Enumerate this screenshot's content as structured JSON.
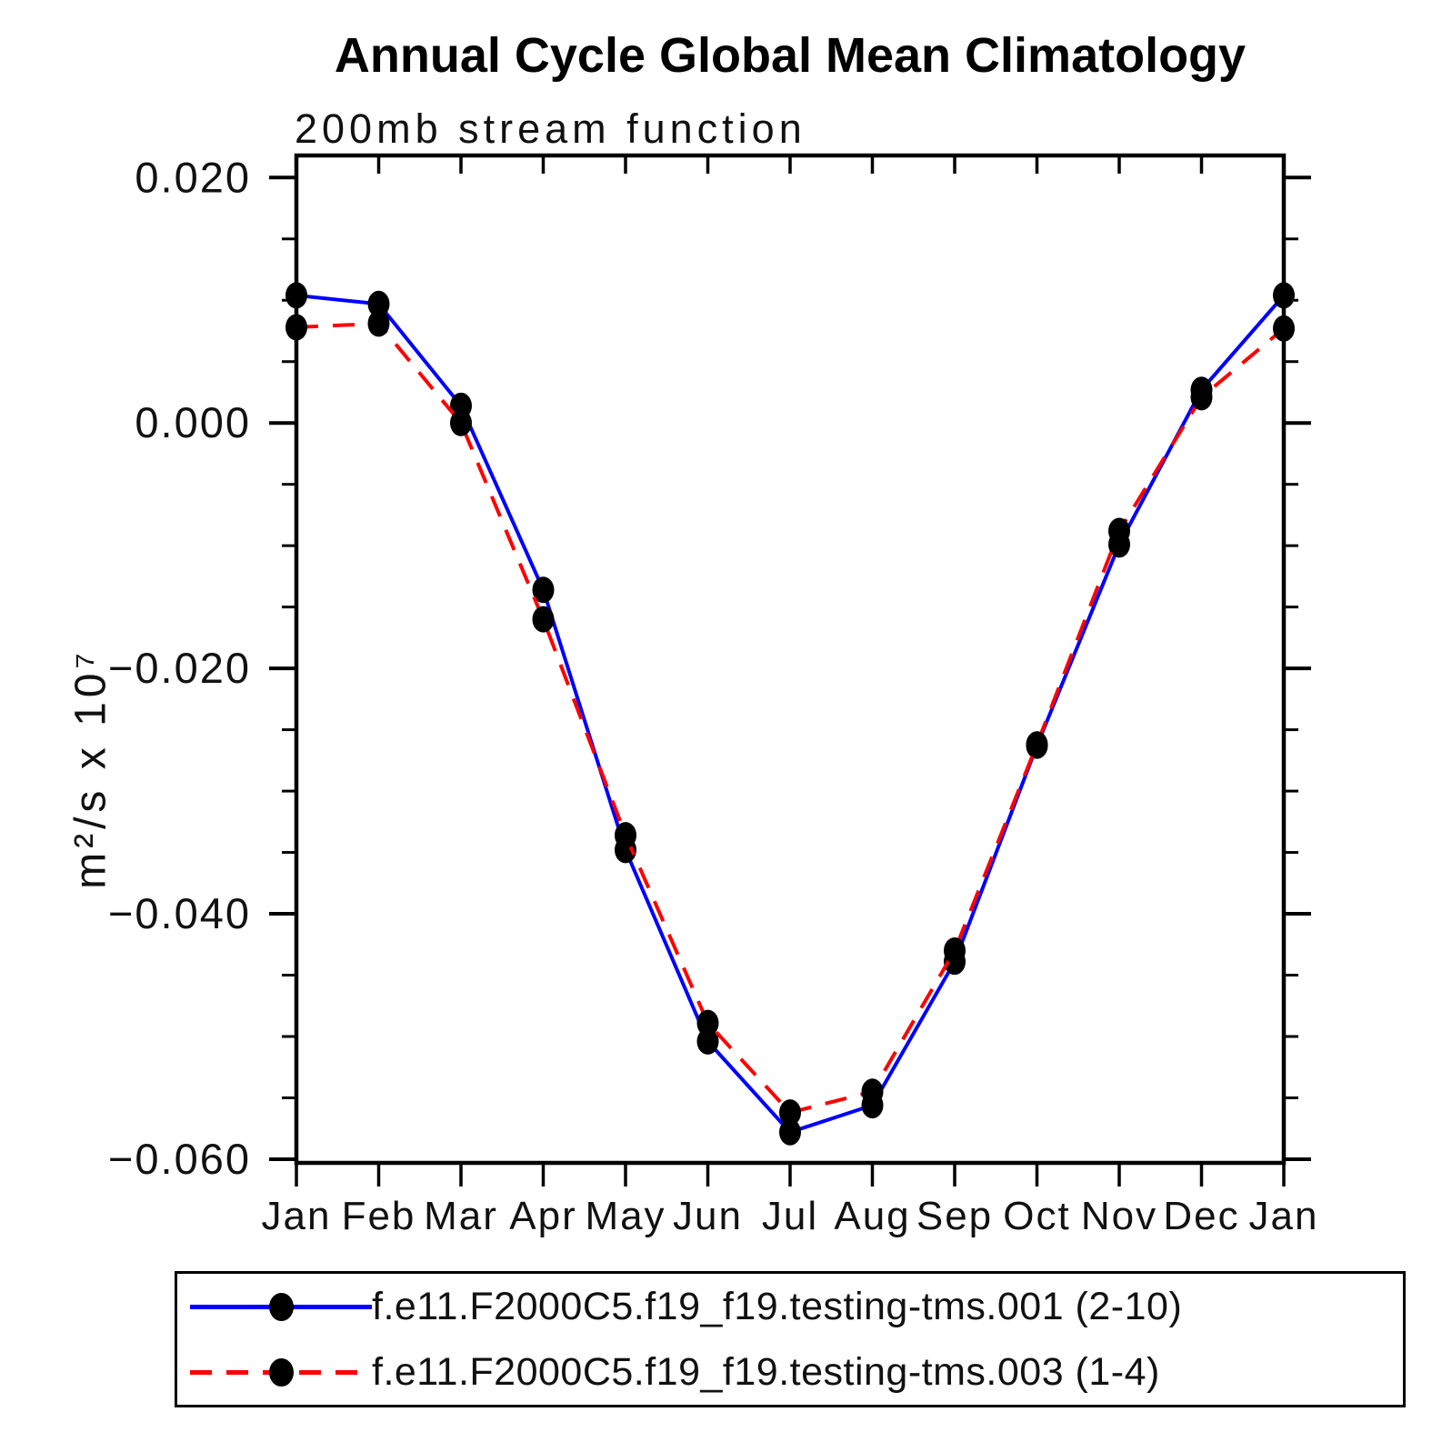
{
  "title": "Annual Cycle Global Mean Climatology",
  "subtitle": "200mb stream function",
  "y_axis": {
    "label": "m²/s x 10⁷",
    "tick_labels": [
      "0.020",
      "0.000",
      "−0.020",
      "−0.040",
      "−0.060"
    ]
  },
  "x_axis": {
    "tick_labels": [
      "Jan",
      "Feb",
      "Mar",
      "Apr",
      "May",
      "Jun",
      "Jul",
      "Aug",
      "Sep",
      "Oct",
      "Nov",
      "Dec",
      "Jan"
    ]
  },
  "chart_data": {
    "type": "line",
    "title": "Annual Cycle Global Mean Climatology",
    "subtitle": "200mb stream function",
    "xlabel": "",
    "ylabel": "m²/s x 10⁷",
    "categories": [
      "Jan",
      "Feb",
      "Mar",
      "Apr",
      "May",
      "Jun",
      "Jul",
      "Aug",
      "Sep",
      "Oct",
      "Nov",
      "Dec",
      "Jan"
    ],
    "ylim": [
      -0.0603,
      0.0218
    ],
    "y_major_ticks": [
      0.02,
      0.0,
      -0.02,
      -0.04,
      -0.06
    ],
    "y_minor_step": 0.005,
    "grid": false,
    "legend_position": "bottom",
    "marker": "filled-circle",
    "marker_color": "#000000",
    "series": [
      {
        "name": "f.e11.F2000C5.f19_f19.testing-tms.001 (2-10)",
        "color": "#0000ff",
        "line_style": "solid",
        "values": [
          0.0104,
          0.0097,
          0.0014,
          -0.0136,
          -0.0348,
          -0.0504,
          -0.0578,
          -0.0556,
          -0.0439,
          -0.0263,
          -0.0099,
          0.0027,
          0.0104
        ]
      },
      {
        "name": "f.e11.F2000C5.f19_f19.testing-tms.003 (1-4)",
        "color": "#ff0000",
        "line_style": "dashed",
        "values": [
          0.0078,
          0.0081,
          0.0,
          -0.016,
          -0.0336,
          -0.0489,
          -0.0562,
          -0.0545,
          -0.043,
          -0.0262,
          -0.0088,
          0.0021,
          0.0077
        ]
      }
    ]
  }
}
